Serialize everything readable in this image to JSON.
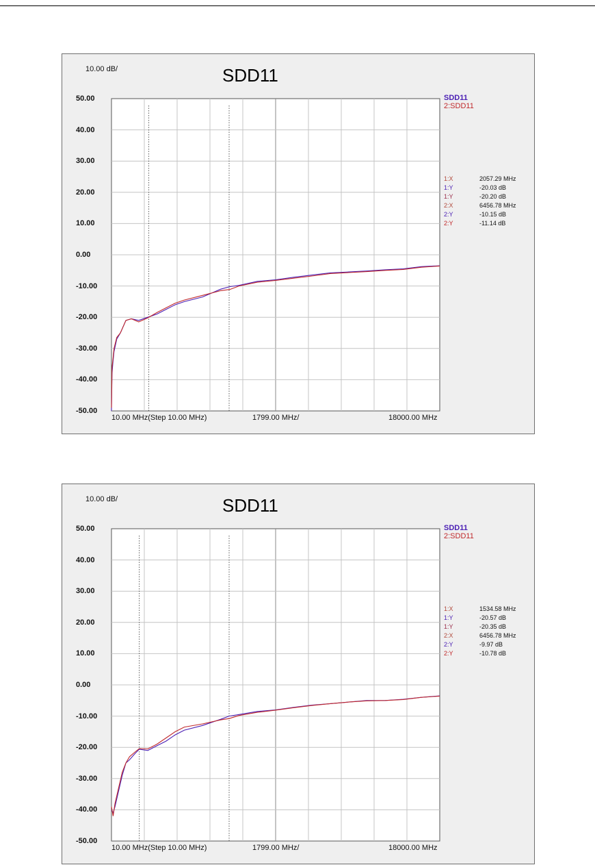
{
  "chart_data": [
    {
      "type": "line",
      "title": "SDD11",
      "scale_label": "10.00 dB/",
      "ylim": [
        -50,
        50
      ],
      "y_ticks": [
        "50.00",
        "40.00",
        "30.00",
        "20.00",
        "10.00",
        "0.00",
        "-10.00",
        "-20.00",
        "-30.00",
        "-40.00",
        "-50.00"
      ],
      "x_start_label": "10.00 MHz(Step 10.00 MHz)",
      "x_div_label": "1799.00 MHz/",
      "x_stop_label": "18000.00 MHz",
      "xlim_mhz": [
        10,
        18000
      ],
      "grid": true,
      "legend_position": "right",
      "series": [
        {
          "name": "SDD11",
          "color": "#4b1fb4",
          "x": [
            10,
            40,
            80,
            150,
            300,
            500,
            800,
            1100,
            1500,
            2000,
            2500,
            3000,
            3500,
            4000,
            5000,
            6000,
            6500,
            7000,
            8000,
            9000,
            10000,
            11000,
            12000,
            13000,
            14000,
            15000,
            16000,
            17000,
            18000
          ],
          "y": [
            -50,
            -38,
            -35,
            -31,
            -27,
            -25,
            -21,
            -20.5,
            -21,
            -20,
            -19,
            -17.5,
            -16,
            -15,
            -13.5,
            -11,
            -10.2,
            -9.8,
            -8.5,
            -8,
            -7.2,
            -6.5,
            -5.8,
            -5.5,
            -5.2,
            -4.8,
            -4.5,
            -3.8,
            -3.5
          ]
        },
        {
          "name": "2:SDD11",
          "color": "#c0282b",
          "x": [
            10,
            40,
            80,
            150,
            300,
            500,
            800,
            1100,
            1500,
            2000,
            2500,
            3000,
            3500,
            4000,
            5000,
            6000,
            6500,
            7000,
            8000,
            9000,
            10000,
            11000,
            12000,
            13000,
            14000,
            15000,
            16000,
            17000,
            18000
          ],
          "y": [
            -49,
            -36,
            -34,
            -30,
            -26.5,
            -25,
            -21,
            -20.5,
            -21.5,
            -20.2,
            -18.5,
            -17,
            -15.5,
            -14.5,
            -13,
            -11.5,
            -11.1,
            -10,
            -8.8,
            -8.2,
            -7.5,
            -6.8,
            -6,
            -5.7,
            -5.4,
            -5,
            -4.7,
            -4,
            -3.6
          ]
        }
      ],
      "markers": [
        {
          "label": "1:X",
          "value": "2057.29 MHz",
          "color": "#b14a3c"
        },
        {
          "label": "1:Y",
          "value": "-20.03 dB",
          "color": "#4b1fb4"
        },
        {
          "label": "1:Y",
          "value": "-20.20 dB",
          "color": "#9b2d4a"
        },
        {
          "label": "2:X",
          "value": "6456.78 MHz",
          "color": "#b14a3c"
        },
        {
          "label": "2:Y",
          "value": "-10.15 dB",
          "color": "#4b1fb4"
        },
        {
          "label": "2:Y",
          "value": "-11.14 dB",
          "color": "#c0282b"
        }
      ],
      "marker_lines_mhz": [
        2057.29,
        6456.78
      ]
    },
    {
      "type": "line",
      "title": "SDD11",
      "scale_label": "10.00 dB/",
      "ylim": [
        -50,
        50
      ],
      "y_ticks": [
        "50.00",
        "40.00",
        "30.00",
        "20.00",
        "10.00",
        "0.00",
        "-10.00",
        "-20.00",
        "-30.00",
        "-40.00",
        "-50.00"
      ],
      "x_start_label": "10.00 MHz(Step 10.00 MHz)",
      "x_div_label": "1799.00 MHz/",
      "x_stop_label": "18000.00 MHz",
      "xlim_mhz": [
        10,
        18000
      ],
      "grid": true,
      "legend_position": "right",
      "series": [
        {
          "name": "SDD11",
          "color": "#4b1fb4",
          "x": [
            10,
            100,
            200,
            400,
            600,
            800,
            1000,
            1300,
            1534,
            2000,
            2500,
            3000,
            3500,
            4000,
            5000,
            6000,
            6456,
            7000,
            8000,
            9000,
            10000,
            11000,
            12000,
            13000,
            14000,
            15000,
            16000,
            17000,
            18000
          ],
          "y": [
            -40,
            -41,
            -39,
            -34,
            -29,
            -25,
            -24,
            -22,
            -20.6,
            -21,
            -19.5,
            -18,
            -16,
            -14.5,
            -13,
            -11,
            -10,
            -9.5,
            -8.5,
            -8,
            -7.2,
            -6.5,
            -6,
            -5.5,
            -5,
            -5,
            -4.6,
            -4,
            -3.5
          ]
        },
        {
          "name": "2:SDD11",
          "color": "#c0282b",
          "x": [
            10,
            100,
            200,
            400,
            600,
            800,
            1000,
            1300,
            1534,
            2000,
            2500,
            3000,
            3500,
            4000,
            5000,
            6000,
            6456,
            7000,
            8000,
            9000,
            10000,
            11000,
            12000,
            13000,
            14000,
            15000,
            16000,
            17000,
            18000
          ],
          "y": [
            -39,
            -42,
            -38,
            -33,
            -28,
            -25,
            -23,
            -21.5,
            -20.4,
            -20.5,
            -19,
            -17,
            -15,
            -13.5,
            -12.5,
            -11.2,
            -10.8,
            -9.8,
            -8.8,
            -8.1,
            -7.3,
            -6.6,
            -6,
            -5.5,
            -5.1,
            -5,
            -4.7,
            -4,
            -3.6
          ]
        }
      ],
      "markers": [
        {
          "label": "1:X",
          "value": "1534.58 MHz",
          "color": "#b14a3c"
        },
        {
          "label": "1:Y",
          "value": "-20.57 dB",
          "color": "#4b1fb4"
        },
        {
          "label": "1:Y",
          "value": "-20.35 dB",
          "color": "#9b2d4a"
        },
        {
          "label": "2:X",
          "value": "6456.78 MHz",
          "color": "#b14a3c"
        },
        {
          "label": "2:Y",
          "value": "-9.97 dB",
          "color": "#4b1fb4"
        },
        {
          "label": "2:Y",
          "value": "-10.78 dB",
          "color": "#c0282b"
        }
      ],
      "marker_lines_mhz": [
        1534.58,
        6456.78
      ]
    }
  ]
}
